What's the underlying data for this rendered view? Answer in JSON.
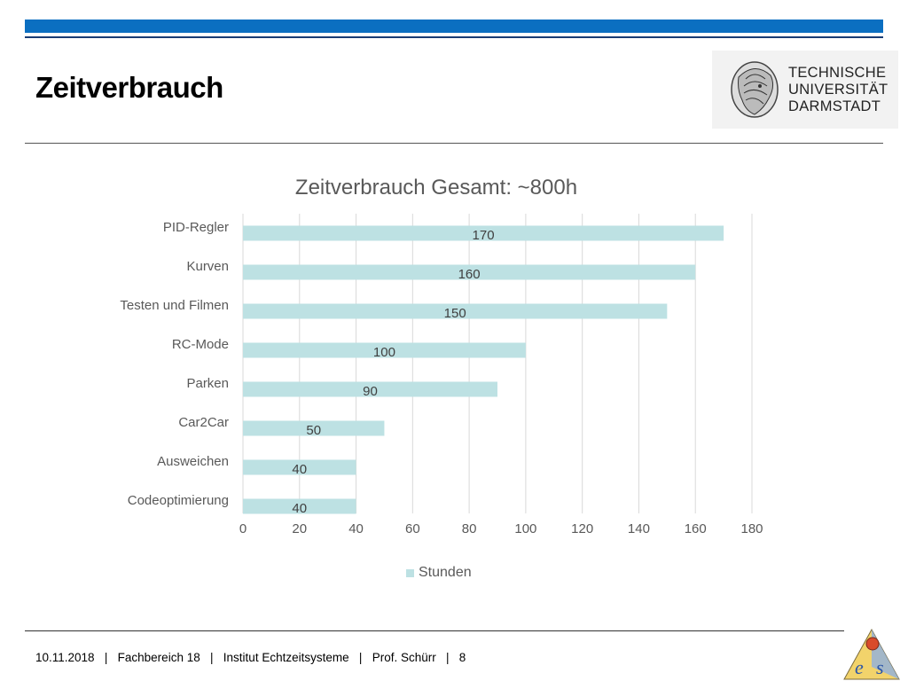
{
  "slide": {
    "title": "Zeitverbrauch"
  },
  "logo": {
    "line1": "TECHNISCHE",
    "line2": "UNIVERSITÄT",
    "line3": "DARMSTADT"
  },
  "chart_data": {
    "type": "bar",
    "orientation": "horizontal",
    "title": "Zeitverbrauch Gesamt: ~800h",
    "categories": [
      "PID-Regler",
      "Kurven",
      "Testen und Filmen",
      "RC-Mode",
      "Parken",
      "Car2Car",
      "Ausweichen",
      "Codeoptimierung"
    ],
    "series": [
      {
        "name": "Stunden",
        "values": [
          170,
          160,
          150,
          100,
          90,
          50,
          40,
          40
        ],
        "color": "#bde1e3"
      }
    ],
    "xlim": [
      0,
      180
    ],
    "xticks": [
      0,
      20,
      40,
      60,
      80,
      100,
      120,
      140,
      160,
      180
    ],
    "grid": true,
    "legend": "bottom"
  },
  "footer": {
    "date": "10.11.2018",
    "department": "Fachbereich 18",
    "institute": "Institut Echtzeitsysteme",
    "author": "Prof. Schürr",
    "page": "8",
    "separator": "|"
  }
}
